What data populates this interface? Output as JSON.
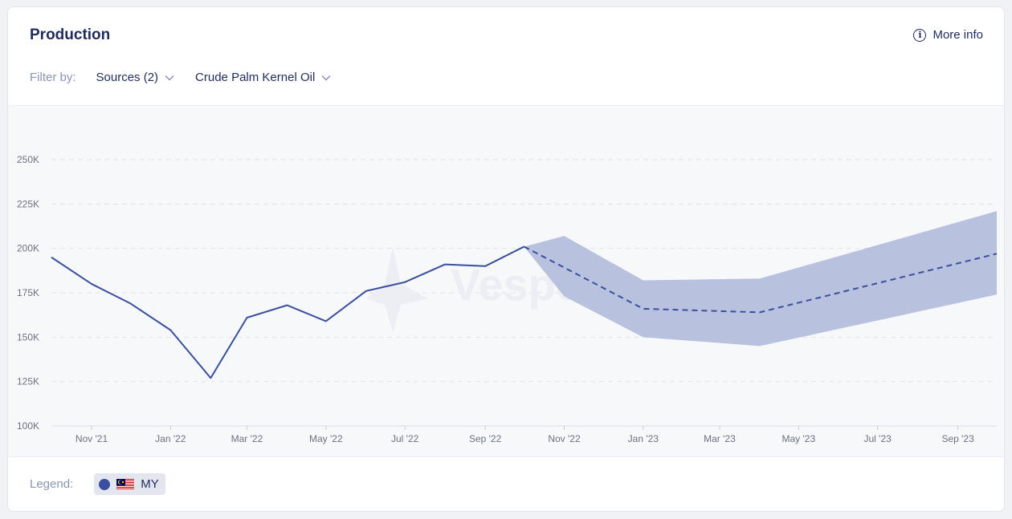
{
  "header": {
    "title": "Production",
    "more_info_label": "More info"
  },
  "filters": {
    "label": "Filter by:",
    "sources_label": "Sources (2)",
    "product_label": "Crude Palm Kernel Oil"
  },
  "watermark": "Vesper",
  "legend": {
    "label": "Legend:",
    "items": [
      {
        "label": "MY",
        "color": "#3a4f9d"
      }
    ]
  },
  "colors": {
    "line": "#3a4f9d",
    "band": "#b4bfdd",
    "grid": "#dfe2ea",
    "axis_text": "#6b7280"
  },
  "chart_data": {
    "type": "line",
    "title": "Production",
    "xlabel": "",
    "ylabel": "",
    "ylim": [
      100000,
      250000
    ],
    "yticks": [
      100000,
      125000,
      150000,
      175000,
      200000,
      225000,
      250000
    ],
    "ytick_labels": [
      "100K",
      "125K",
      "150K",
      "175K",
      "200K",
      "225K",
      "250K"
    ],
    "xticks": [
      "2021-11-01",
      "2022-01-01",
      "2022-03-01",
      "2022-05-01",
      "2022-07-01",
      "2022-09-01",
      "2022-11-01",
      "2023-01-01",
      "2023-03-01",
      "2023-05-01",
      "2023-07-01",
      "2023-09-01"
    ],
    "xtick_labels": [
      "Nov '21",
      "Jan '22",
      "Mar '22",
      "May '22",
      "Jul '22",
      "Sep '22",
      "Nov '22",
      "Jan '23",
      "Mar '23",
      "May '23",
      "Jul '23",
      "Sep '23"
    ],
    "xlim": [
      "2021-10-01",
      "2023-10-01"
    ],
    "grid": true,
    "legend_position": "bottom-left",
    "series": [
      {
        "name": "MY",
        "kind": "actual",
        "style": "solid",
        "points": [
          [
            "2021-10-01",
            195000
          ],
          [
            "2021-11-01",
            180000
          ],
          [
            "2021-12-01",
            169000
          ],
          [
            "2022-01-01",
            154000
          ],
          [
            "2022-02-01",
            127000
          ],
          [
            "2022-03-01",
            161000
          ],
          [
            "2022-04-01",
            168000
          ],
          [
            "2022-05-01",
            159000
          ],
          [
            "2022-06-01",
            176000
          ],
          [
            "2022-07-01",
            181000
          ],
          [
            "2022-08-01",
            191000
          ],
          [
            "2022-09-01",
            190000
          ],
          [
            "2022-10-01",
            201000
          ]
        ]
      },
      {
        "name": "MY",
        "kind": "forecast",
        "style": "dashed",
        "points": [
          [
            "2022-10-01",
            201000
          ],
          [
            "2023-01-01",
            166000
          ],
          [
            "2023-04-01",
            164000
          ],
          [
            "2023-10-01",
            197000
          ]
        ],
        "band_upper": [
          [
            "2022-10-01",
            201000
          ],
          [
            "2022-11-01",
            207000
          ],
          [
            "2023-01-01",
            182000
          ],
          [
            "2023-04-01",
            183000
          ],
          [
            "2023-10-01",
            221000
          ]
        ],
        "band_lower": [
          [
            "2022-10-01",
            201000
          ],
          [
            "2022-11-01",
            173000
          ],
          [
            "2023-01-01",
            150000
          ],
          [
            "2023-04-01",
            145000
          ],
          [
            "2023-10-01",
            174000
          ]
        ]
      }
    ]
  }
}
